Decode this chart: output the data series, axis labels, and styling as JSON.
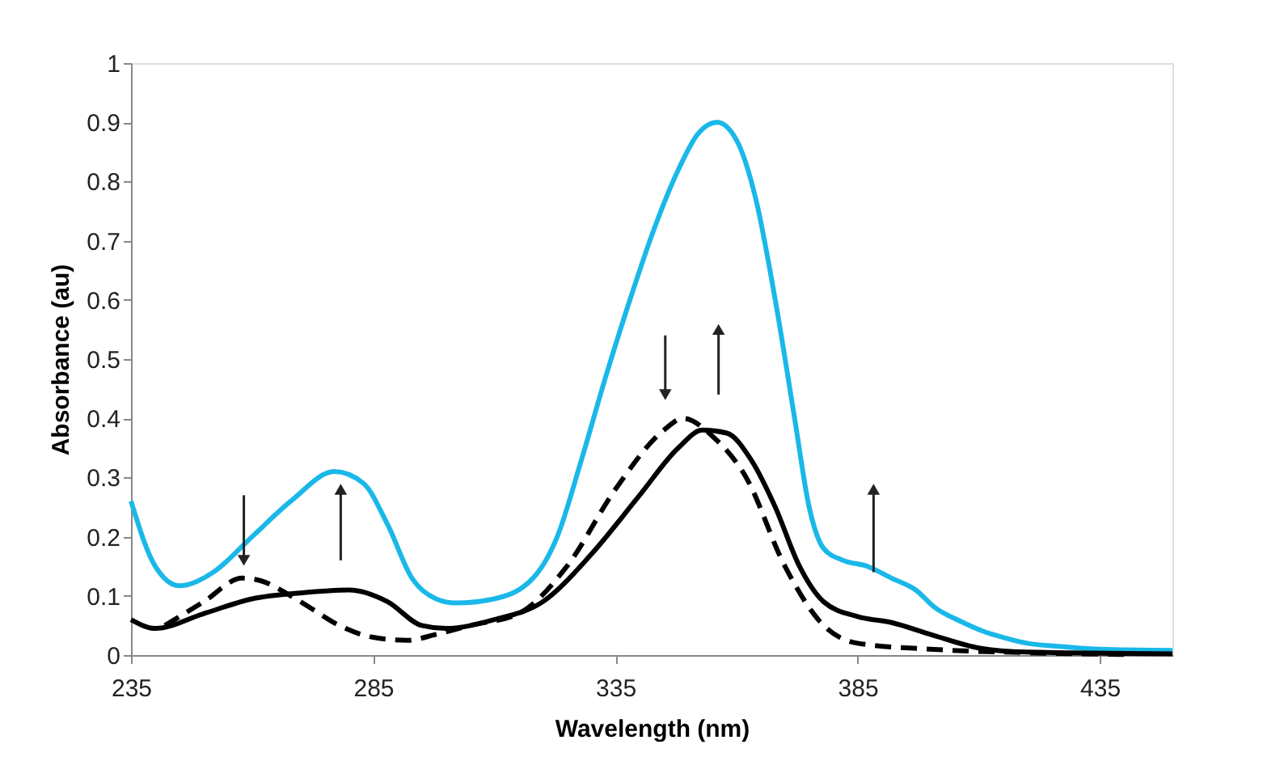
{
  "chart_data": {
    "type": "line",
    "xlabel": "Wavelength (nm)",
    "ylabel": "Absorbance (au)",
    "xlim": [
      235,
      450
    ],
    "xticks": [
      235,
      285,
      335,
      385,
      435
    ],
    "ylim": [
      0,
      1
    ],
    "yticks": [
      0,
      0.1,
      0.2,
      0.3,
      0.4,
      0.5,
      0.6,
      0.7,
      0.8,
      0.9,
      1
    ],
    "grid": false,
    "legend": false,
    "marker": "none",
    "series": [
      {
        "color": "#1ab8e8",
        "line_style": "solid",
        "x": [
          235,
          240,
          245,
          252,
          260,
          268,
          277,
          283,
          288,
          293,
          298,
          302,
          310,
          318,
          323,
          328,
          333,
          338,
          343,
          348,
          352,
          356,
          360,
          364,
          368,
          372,
          375,
          378,
          382,
          387,
          392,
          397,
          401,
          406,
          411,
          415,
          420,
          426,
          435,
          450
        ],
        "values": [
          0.26,
          0.15,
          0.117,
          0.14,
          0.2,
          0.26,
          0.31,
          0.29,
          0.22,
          0.13,
          0.095,
          0.088,
          0.095,
          0.13,
          0.2,
          0.33,
          0.47,
          0.6,
          0.72,
          0.82,
          0.88,
          0.9,
          0.87,
          0.77,
          0.6,
          0.4,
          0.25,
          0.18,
          0.16,
          0.15,
          0.13,
          0.11,
          0.08,
          0.058,
          0.04,
          0.03,
          0.02,
          0.015,
          0.01,
          0.008
        ]
      },
      {
        "color": "#000000",
        "line_style": "solid",
        "x": [
          235,
          240,
          250,
          260,
          270,
          280,
          288,
          295,
          300,
          310,
          320,
          330,
          340,
          348,
          353,
          358,
          363,
          368,
          373,
          378,
          385,
          392,
          400,
          410,
          420,
          450
        ],
        "values": [
          0.06,
          0.045,
          0.07,
          0.095,
          0.105,
          0.11,
          0.09,
          0.05,
          0.045,
          0.06,
          0.09,
          0.17,
          0.27,
          0.35,
          0.38,
          0.375,
          0.33,
          0.25,
          0.15,
          0.09,
          0.065,
          0.055,
          0.035,
          0.012,
          0.005,
          0.002
        ]
      },
      {
        "color": "#000000",
        "line_style": "dashed",
        "x": [
          242,
          250,
          258,
          262,
          268,
          272,
          278,
          285,
          292,
          298,
          305,
          315,
          325,
          335,
          345,
          349,
          355,
          362,
          370,
          378,
          385,
          400,
          420,
          440
        ],
        "values": [
          0.05,
          0.09,
          0.13,
          0.125,
          0.1,
          0.08,
          0.05,
          0.03,
          0.025,
          0.035,
          0.05,
          0.07,
          0.15,
          0.28,
          0.38,
          0.4,
          0.37,
          0.3,
          0.15,
          0.05,
          0.02,
          0.01,
          0.004,
          0.001
        ]
      }
    ]
  }
}
